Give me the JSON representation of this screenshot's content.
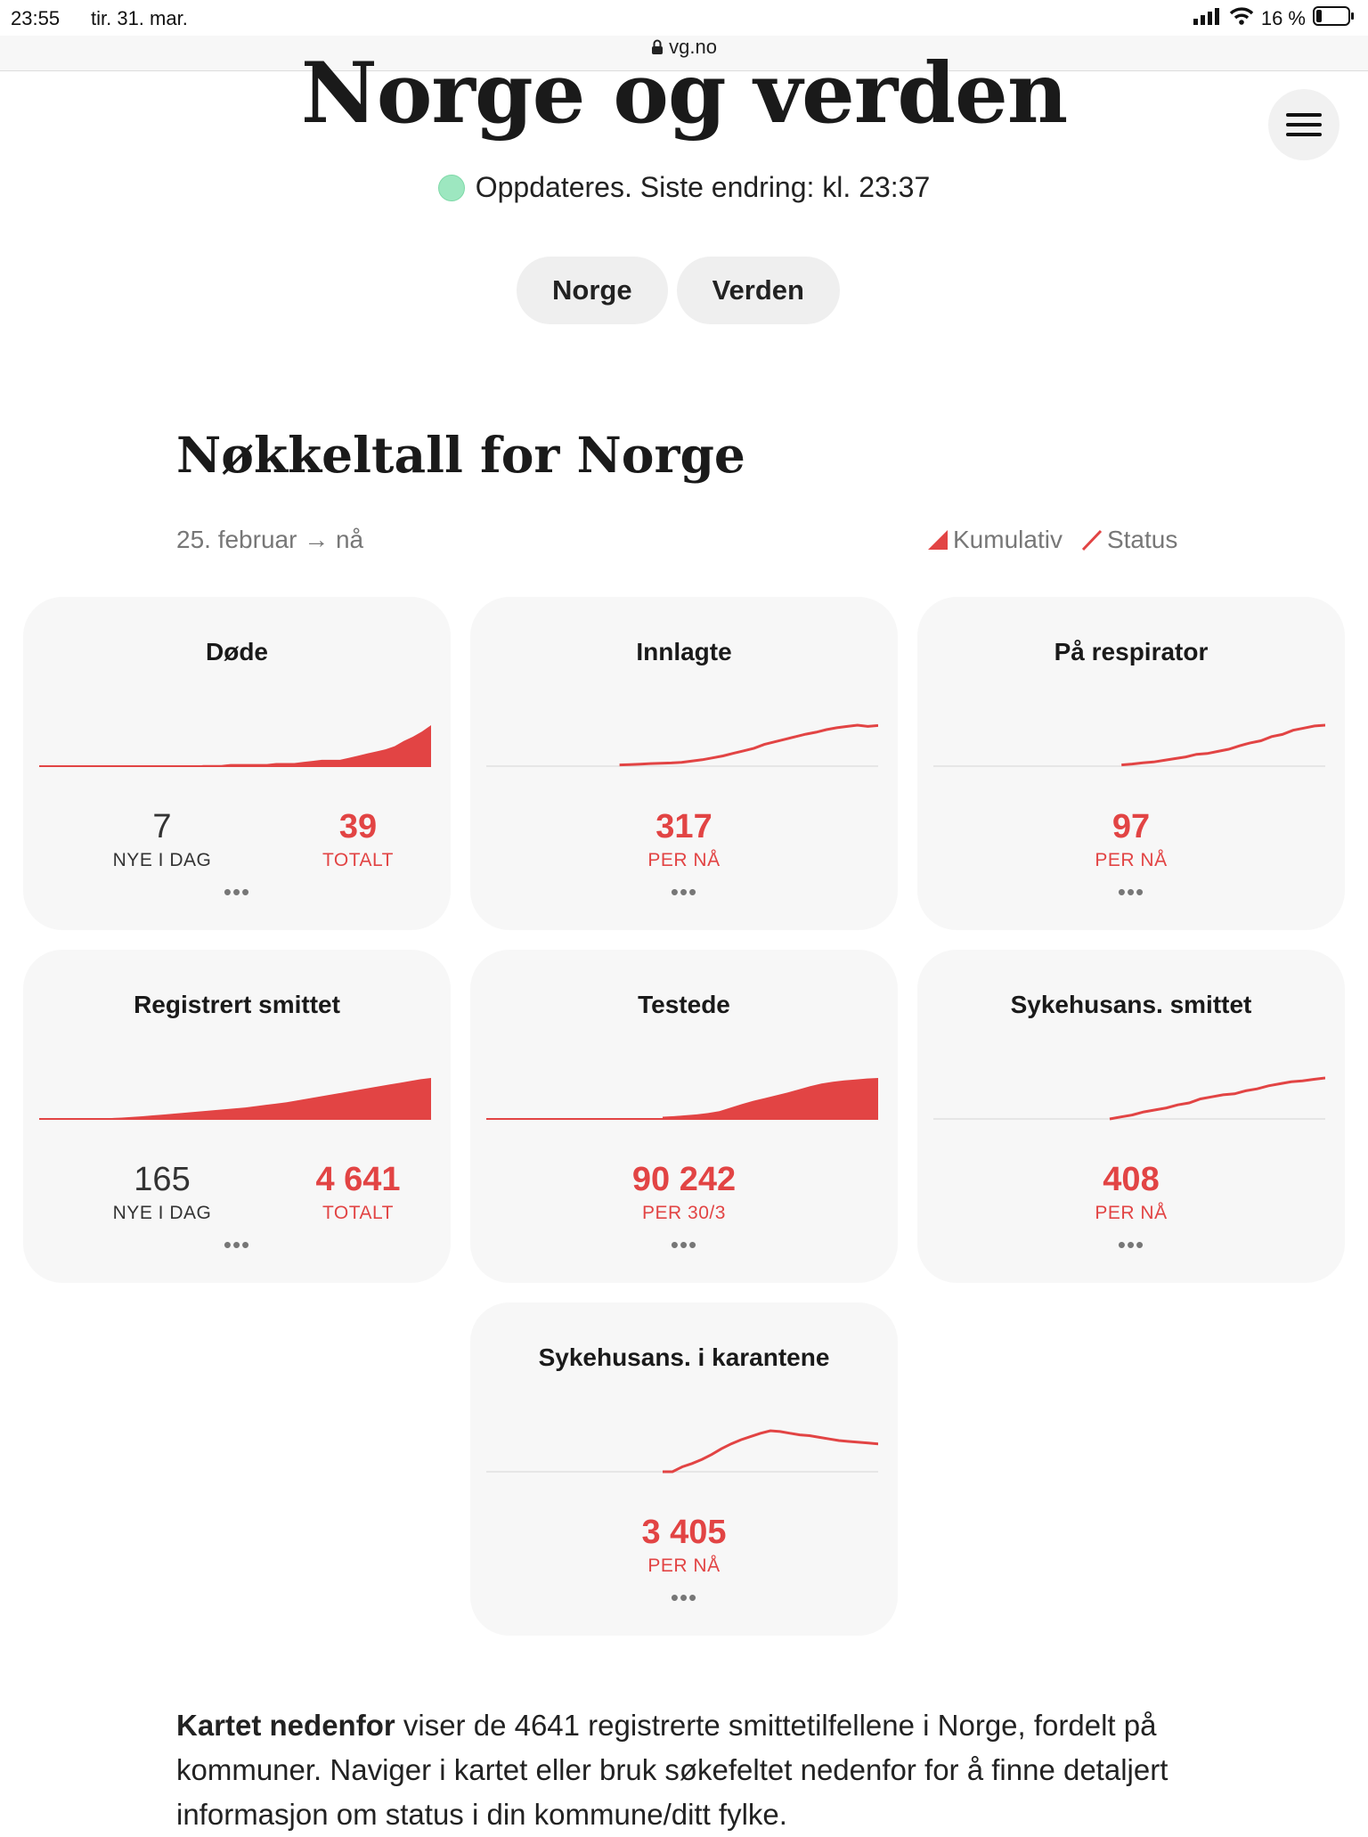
{
  "statusbar": {
    "time": "23:55",
    "date": "tir. 31. mar.",
    "battery": "16 %"
  },
  "browser": {
    "url": "vg.no"
  },
  "header": {
    "title": "Norge og verden"
  },
  "update": {
    "text": "Oppdateres. Siste endring: kl. 23:37"
  },
  "tabs": [
    {
      "label": "Norge"
    },
    {
      "label": "Verden"
    }
  ],
  "section": {
    "title": "Nøkkeltall for Norge",
    "period": "25. februar → nå",
    "legend": {
      "cumulative": "Kumulativ",
      "status": "Status"
    }
  },
  "cards": [
    {
      "title": "Døde",
      "chart": "area",
      "left_value": "7",
      "left_label": "NYE I DAG",
      "right_value": "39",
      "right_label": "TOTALT",
      "more": "•••",
      "series": [
        0,
        0,
        0,
        0,
        0,
        0,
        0,
        0,
        0,
        0,
        0,
        0,
        0,
        0,
        0,
        0,
        0,
        0,
        1,
        1,
        1,
        2,
        2,
        2,
        2,
        2,
        3,
        3,
        3,
        4,
        5,
        6,
        6,
        6,
        8,
        10,
        12,
        14,
        16,
        19,
        24,
        28,
        33,
        39
      ]
    },
    {
      "title": "Innlagte",
      "chart": "line",
      "value": "317",
      "label": "PER NÅ",
      "more": "•••",
      "series": [
        10,
        12,
        15,
        20,
        22,
        25,
        30,
        40,
        50,
        65,
        80,
        100,
        120,
        140,
        170,
        190,
        210,
        230,
        250,
        265,
        285,
        300,
        310,
        320,
        310,
        317
      ]
    },
    {
      "title": "På respirator",
      "chart": "line",
      "value": "97",
      "label": "PER NÅ",
      "more": "•••",
      "series": [
        3,
        5,
        8,
        10,
        14,
        18,
        22,
        28,
        30,
        35,
        40,
        48,
        55,
        60,
        70,
        75,
        85,
        90,
        95,
        97
      ]
    },
    {
      "title": "Registrert smittet",
      "chart": "area",
      "left_value": "165",
      "left_label": "NYE I DAG",
      "right_value": "4 641",
      "right_label": "TOTALT",
      "more": "•••",
      "series": [
        1,
        2,
        4,
        6,
        15,
        30,
        60,
        100,
        150,
        220,
        300,
        400,
        490,
        600,
        700,
        800,
        900,
        1000,
        1100,
        1200,
        1300,
        1450,
        1600,
        1750,
        1900,
        2100,
        2300,
        2500,
        2700,
        2900,
        3100,
        3300,
        3500,
        3700,
        3900,
        4100,
        4300,
        4500,
        4641
      ]
    },
    {
      "title": "Testede",
      "chart": "area",
      "value": "90 242",
      "label": "PER 30/3",
      "more": "•••",
      "series": [
        5000,
        6000,
        8000,
        10000,
        13000,
        17000,
        25000,
        33000,
        40000,
        46000,
        52000,
        58000,
        65000,
        72000,
        78000,
        82000,
        85000,
        87000,
        89000,
        90242
      ]
    },
    {
      "title": "Sykehusans. smittet",
      "chart": "line",
      "value": "408",
      "label": "PER NÅ",
      "more": "•••",
      "series": [
        0,
        20,
        40,
        70,
        90,
        110,
        140,
        160,
        200,
        220,
        240,
        250,
        280,
        300,
        330,
        350,
        370,
        380,
        395,
        408
      ]
    },
    {
      "title": "Sykehusans. i karantene",
      "chart": "line",
      "value": "3 405",
      "label": "PER NÅ",
      "more": "•••",
      "series": [
        0,
        0,
        600,
        1000,
        1500,
        2100,
        2800,
        3400,
        3900,
        4300,
        4700,
        5000,
        4900,
        4700,
        4500,
        4400,
        4200,
        4000,
        3800,
        3700,
        3600,
        3500,
        3405
      ]
    }
  ],
  "body": {
    "lead": "Kartet nedenfor",
    "text": " viser de 4641 registrerte smittetilfellene i Norge, fordelt på kommuner. Naviger i kartet eller bruk søkefeltet nedenfor for å finne detaljert informasjon om status i din kommune/ditt fylke."
  },
  "colors": {
    "accent": "#e24444",
    "card_bg": "#f7f7f7",
    "status_dot": "#9de7c0"
  }
}
